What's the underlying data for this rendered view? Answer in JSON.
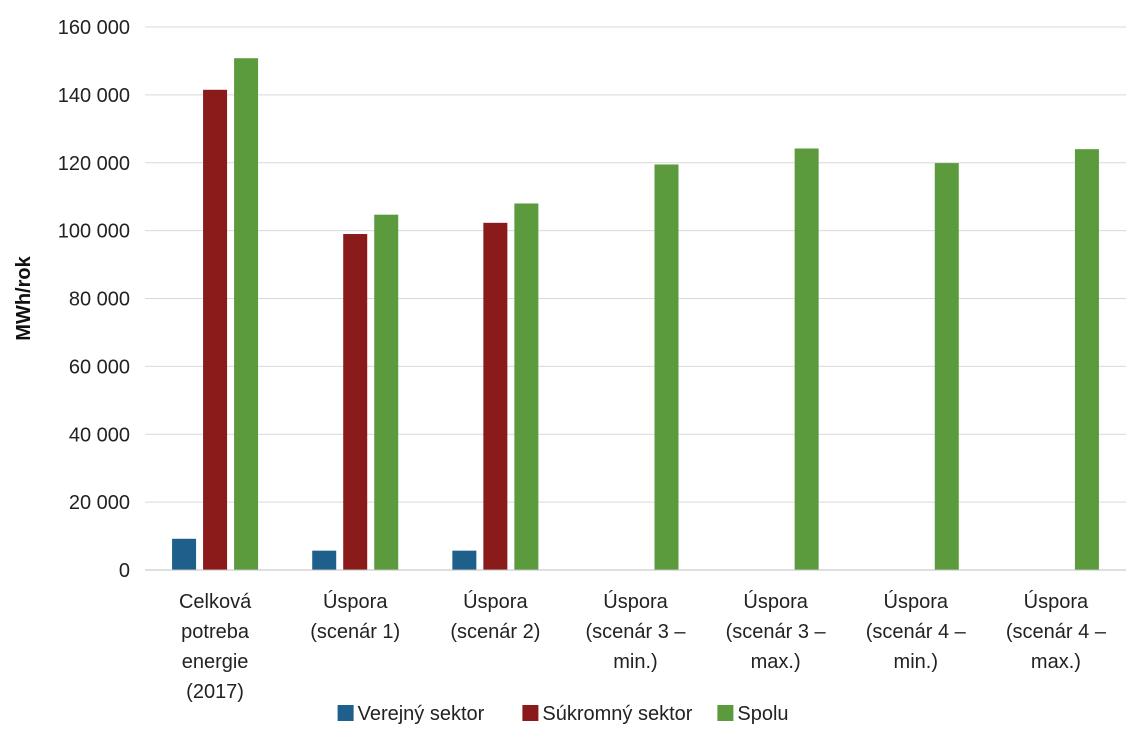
{
  "chart_data": {
    "type": "bar",
    "ylabel": "MWh/rok",
    "xlabel": "",
    "ylim": [
      0,
      160000
    ],
    "yticks": [
      0,
      20000,
      40000,
      60000,
      80000,
      100000,
      120000,
      140000,
      160000
    ],
    "ytick_labels": [
      "0",
      "20 000",
      "40 000",
      "60 000",
      "80 000",
      "100 000",
      "120 000",
      "140 000",
      "160 000"
    ],
    "grid": true,
    "legend_position": "bottom",
    "categories": [
      [
        "Celková",
        "potreba",
        "energie",
        "(2017)"
      ],
      [
        "Úspora",
        "(scenár 1)"
      ],
      [
        "Úspora",
        "(scenár 2)"
      ],
      [
        "Úspora",
        "(scenár 3 –",
        "min.)"
      ],
      [
        "Úspora",
        "(scenár 3 –",
        "max.)"
      ],
      [
        "Úspora",
        "(scenár 4 –",
        "min.)"
      ],
      [
        "Úspora",
        "(scenár 4 –",
        "max.)"
      ]
    ],
    "series": [
      {
        "name": "Verejný sektor",
        "color": "#1f5f8b",
        "values": [
          9200,
          5700,
          5700,
          null,
          null,
          null,
          null
        ]
      },
      {
        "name": "Súkromný sektor",
        "color": "#8b1a1a",
        "values": [
          141500,
          99000,
          102300,
          null,
          null,
          null,
          null
        ]
      },
      {
        "name": "Spolu",
        "color": "#5b9b3e",
        "values": [
          150800,
          104700,
          108000,
          119500,
          124200,
          119900,
          124000
        ]
      }
    ]
  }
}
